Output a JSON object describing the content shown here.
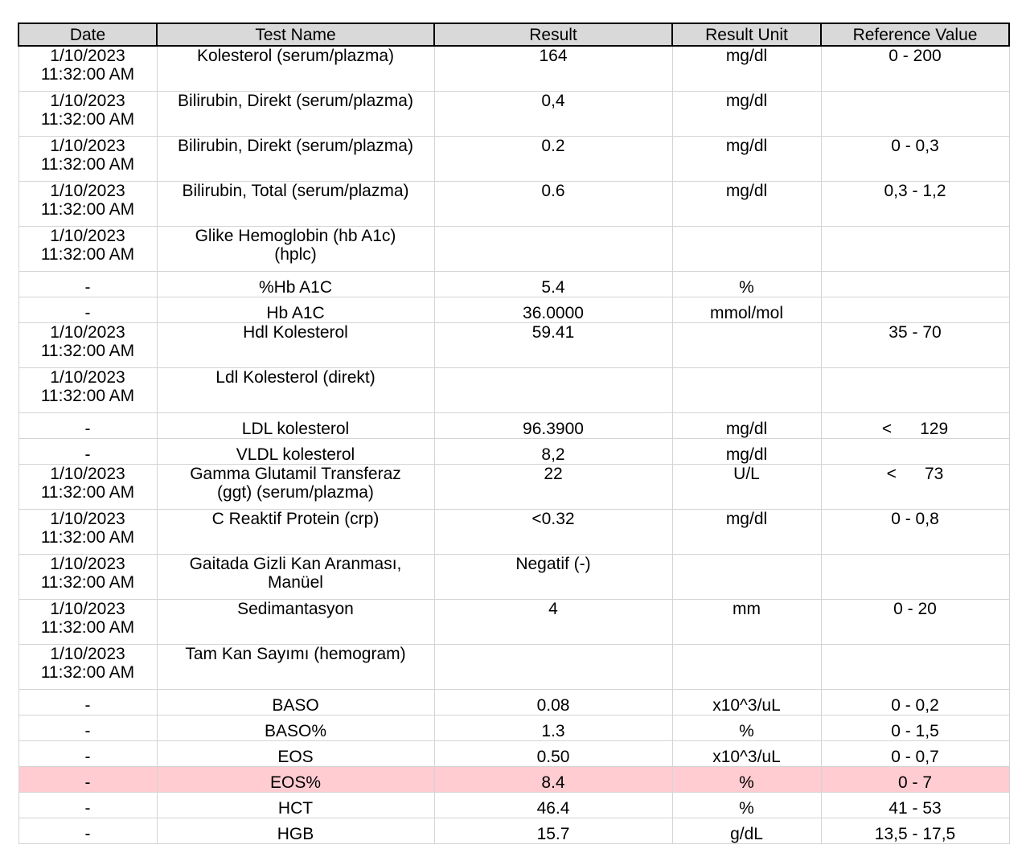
{
  "table": {
    "headers": {
      "date": "Date",
      "test_name": "Test Name",
      "result": "Result",
      "result_unit": "Result Unit",
      "reference_value": "Reference Value"
    },
    "rows": [
      {
        "date": "1/10/2023\n11:32:00 AM",
        "test": "Kolesterol (serum/plazma)",
        "result": "164",
        "unit": "mg/dl",
        "ref": "0 - 200",
        "flag": false
      },
      {
        "date": "1/10/2023\n11:32:00 AM",
        "test": "Bilirubin, Direkt (serum/plazma)",
        "result": "0,4",
        "unit": "mg/dl",
        "ref": "",
        "flag": false
      },
      {
        "date": "1/10/2023\n11:32:00 AM",
        "test": "Bilirubin, Direkt (serum/plazma)",
        "result": "0.2",
        "unit": "mg/dl",
        "ref": "0 - 0,3",
        "flag": false
      },
      {
        "date": "1/10/2023\n11:32:00 AM",
        "test": "Bilirubin, Total (serum/plazma)",
        "result": "0.6",
        "unit": "mg/dl",
        "ref": "0,3 - 1,2",
        "flag": false
      },
      {
        "date": "1/10/2023\n11:32:00 AM",
        "test": "Glike Hemoglobin (hb A1c)\n(hplc)",
        "result": "",
        "unit": "",
        "ref": "",
        "flag": false
      },
      {
        "date": "-",
        "test": "%Hb A1C",
        "result": "5.4",
        "unit": "%",
        "ref": "",
        "flag": false
      },
      {
        "date": "-",
        "test": "Hb A1C",
        "result": "36.0000",
        "unit": "mmol/mol",
        "ref": "",
        "flag": false
      },
      {
        "date": "1/10/2023\n11:32:00 AM",
        "test": "Hdl Kolesterol",
        "result": "59.41",
        "unit": "",
        "ref": "35 - 70",
        "flag": false
      },
      {
        "date": "1/10/2023\n11:32:00 AM",
        "test": "Ldl Kolesterol (direkt)",
        "result": "",
        "unit": "",
        "ref": "",
        "flag": false
      },
      {
        "date": "-",
        "test": "LDL kolesterol",
        "result": "96.3900",
        "unit": "mg/dl",
        "ref": "<      129",
        "flag": false
      },
      {
        "date": "-",
        "test": "VLDL kolesterol",
        "result": "8,2",
        "unit": "mg/dl",
        "ref": "",
        "flag": false
      },
      {
        "date": "1/10/2023\n11:32:00 AM",
        "test": "Gamma Glutamil Transferaz\n(ggt) (serum/plazma)",
        "result": "22",
        "unit": "U/L",
        "ref": "<      73",
        "flag": false
      },
      {
        "date": "1/10/2023\n11:32:00 AM",
        "test": "C Reaktif Protein (crp)",
        "result": "<0.32",
        "unit": "mg/dl",
        "ref": "0 - 0,8",
        "flag": false
      },
      {
        "date": "1/10/2023\n11:32:00 AM",
        "test": "Gaitada Gizli Kan Aranması,\nManüel",
        "result": "Negatif (-)",
        "unit": "",
        "ref": "",
        "flag": false
      },
      {
        "date": "1/10/2023\n11:32:00 AM",
        "test": "Sedimantasyon",
        "result": "4",
        "unit": "mm",
        "ref": "0 - 20",
        "flag": false
      },
      {
        "date": "1/10/2023\n11:32:00 AM",
        "test": "Tam Kan Sayımı (hemogram)",
        "result": "",
        "unit": "",
        "ref": "",
        "flag": false
      },
      {
        "date": "-",
        "test": "BASO",
        "result": "0.08",
        "unit": "x10^3/uL",
        "ref": "0 - 0,2",
        "flag": false
      },
      {
        "date": "-",
        "test": "BASO%",
        "result": "1.3",
        "unit": "%",
        "ref": "0 - 1,5",
        "flag": false
      },
      {
        "date": "-",
        "test": "EOS",
        "result": "0.50",
        "unit": "x10^3/uL",
        "ref": "0 - 0,7",
        "flag": false
      },
      {
        "date": "-",
        "test": "EOS%",
        "result": "8.4",
        "unit": "%",
        "ref": "0 - 7",
        "flag": true
      },
      {
        "date": "-",
        "test": "HCT",
        "result": "46.4",
        "unit": "%",
        "ref": "41 - 53",
        "flag": false
      },
      {
        "date": "-",
        "test": "HGB",
        "result": "15.7",
        "unit": "g/dL",
        "ref": "13,5 - 17,5",
        "flag": false
      }
    ],
    "flag_color": "#ffccd1",
    "header_color": "#d9d9d9"
  }
}
